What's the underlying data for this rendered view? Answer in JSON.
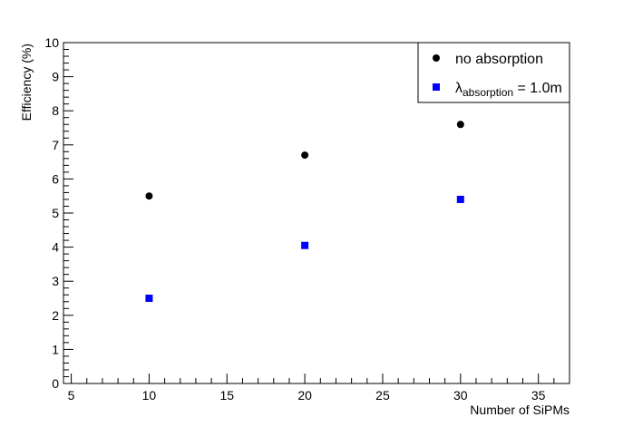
{
  "chart_data": {
    "type": "scatter",
    "xlabel": "Number of SiPMs",
    "ylabel": "Efficiency (%)",
    "xlim": [
      4.5,
      37
    ],
    "ylim": [
      0,
      10
    ],
    "x_ticks": [
      5,
      10,
      15,
      20,
      25,
      30,
      35
    ],
    "y_ticks": [
      0,
      1,
      2,
      3,
      4,
      5,
      6,
      7,
      8,
      9,
      10
    ],
    "grid": false,
    "legend_position": "top-right",
    "series": [
      {
        "name": "no absorption",
        "marker": "circle",
        "color": "#000000",
        "x": [
          10,
          20,
          30
        ],
        "y": [
          5.5,
          6.7,
          7.6
        ]
      },
      {
        "name": "λabsorption = 1.0m",
        "label_symbol": "λ",
        "label_subscript": "absorption",
        "label_suffix": " = 1.0m",
        "marker": "square",
        "color": "#0000ff",
        "x": [
          10,
          20,
          30
        ],
        "y": [
          2.5,
          4.05,
          5.4
        ]
      }
    ]
  }
}
